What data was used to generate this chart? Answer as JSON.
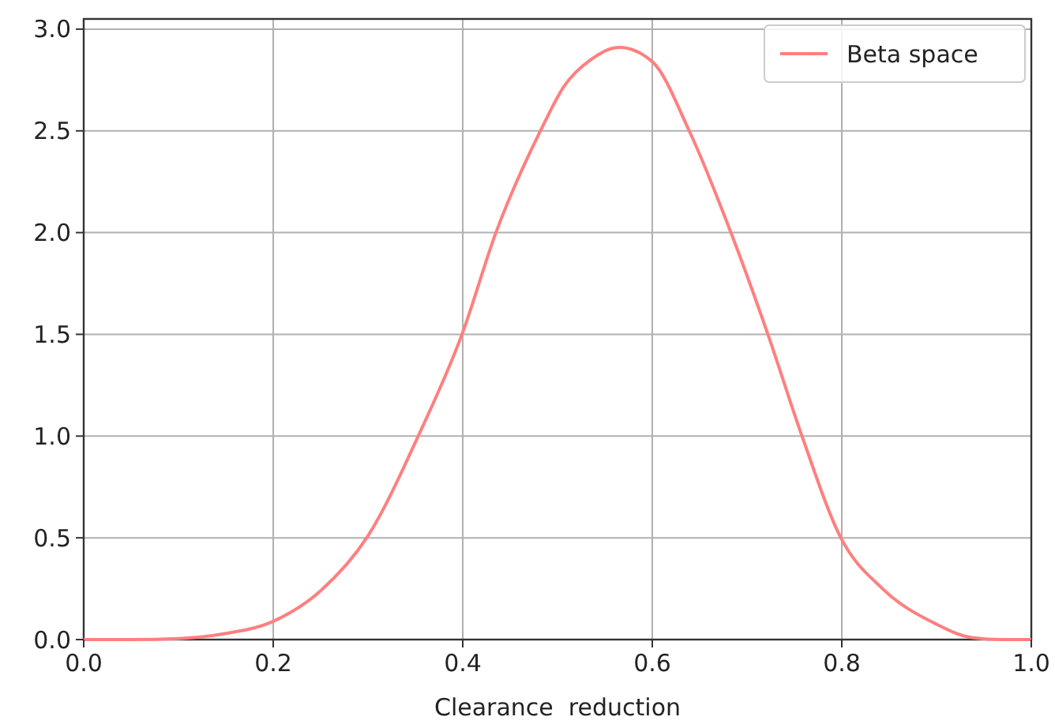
{
  "chart_data": {
    "type": "line",
    "xlabel": "Clearance  reduction",
    "legend": "top right",
    "grid": true,
    "xlim": [
      0,
      1
    ],
    "ylim": [
      0,
      3.05
    ],
    "xticks": [
      {
        "value": 0,
        "label": "0.0"
      },
      {
        "value": 0.2,
        "label": "0.2"
      },
      {
        "value": 0.4,
        "label": "0.4"
      },
      {
        "value": 0.6,
        "label": "0.6"
      },
      {
        "value": 0.8,
        "label": "0.8"
      },
      {
        "value": 1,
        "label": "1.0"
      }
    ],
    "yticks": [
      {
        "value": 0,
        "label": "0.0"
      },
      {
        "value": 0.5,
        "label": "0.5"
      },
      {
        "value": 1,
        "label": "1.0"
      },
      {
        "value": 1.5,
        "label": "1.5"
      },
      {
        "value": 2,
        "label": "2.0"
      },
      {
        "value": 2.5,
        "label": "2.5"
      },
      {
        "value": 3,
        "label": "3.0"
      }
    ],
    "series": [
      {
        "name": "Beta space",
        "color": "#ff7f7f",
        "x": [
          0,
          0.05,
          0.1,
          0.15,
          0.2,
          0.25,
          0.3,
          0.353,
          0.4,
          0.435,
          0.482,
          0.507,
          0.535,
          0.565,
          0.6,
          0.639,
          0.683,
          0.722,
          0.758,
          0.799,
          0.843,
          0.898,
          0.937,
          0.97,
          1
        ],
        "values": [
          0,
          0,
          0.005,
          0.03,
          0.09,
          0.24,
          0.51,
          1.0,
          1.51,
          2.0,
          2.5,
          2.72,
          2.85,
          2.91,
          2.84,
          2.5,
          2.0,
          1.5,
          1.0,
          0.5,
          0.25,
          0.08,
          0.01,
          0,
          0
        ]
      }
    ]
  }
}
